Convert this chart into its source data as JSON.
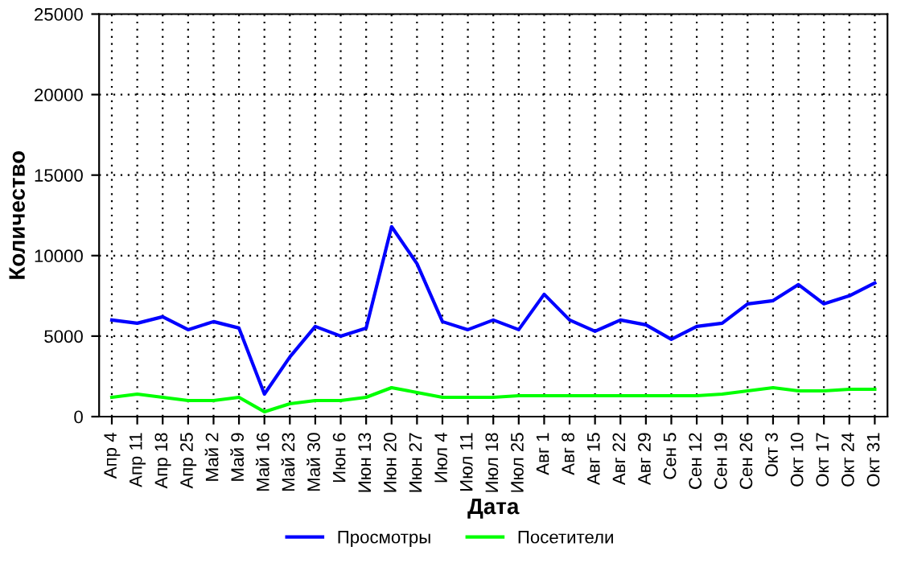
{
  "chart_data": {
    "type": "line",
    "xlabel": "Дата",
    "ylabel": "Количество",
    "categories": [
      "Апр 4",
      "Апр 11",
      "Апр 18",
      "Апр 25",
      "Май 2",
      "Май 9",
      "Май 16",
      "Май 23",
      "Май 30",
      "Июн 6",
      "Июн 13",
      "Июн 20",
      "Июн 27",
      "Июл 4",
      "Июл 11",
      "Июл 18",
      "Июл 25",
      "Авг 1",
      "Авг 8",
      "Авг 15",
      "Авг 22",
      "Авг 29",
      "Сен 5",
      "Сен 12",
      "Сен 19",
      "Сен 26",
      "Окт 3",
      "Окт 10",
      "Окт 17",
      "Окт 24",
      "Окт 31"
    ],
    "series": [
      {
        "name": "Просмотры",
        "color": "#0000ff",
        "values": [
          6000,
          5800,
          6200,
          5400,
          5900,
          5500,
          1400,
          3700,
          5600,
          5000,
          5500,
          11800,
          9500,
          5900,
          5400,
          6000,
          5400,
          7600,
          6000,
          5300,
          6000,
          5700,
          4800,
          5600,
          5800,
          7000,
          7200,
          8200,
          7000,
          7500,
          8300
        ]
      },
      {
        "name": "Посетители",
        "color": "#00ff00",
        "values": [
          1200,
          1400,
          1200,
          1000,
          1000,
          1200,
          300,
          800,
          1000,
          1000,
          1200,
          1800,
          1500,
          1200,
          1200,
          1200,
          1300,
          1300,
          1300,
          1300,
          1300,
          1300,
          1300,
          1300,
          1400,
          1600,
          1800,
          1600,
          1600,
          1700,
          1700
        ]
      }
    ],
    "ylim": [
      0,
      25000
    ],
    "yticks": [
      0,
      5000,
      10000,
      15000,
      20000,
      25000
    ],
    "grid": true,
    "legend": "bottom",
    "marker": "none",
    "line_style": "solid"
  }
}
